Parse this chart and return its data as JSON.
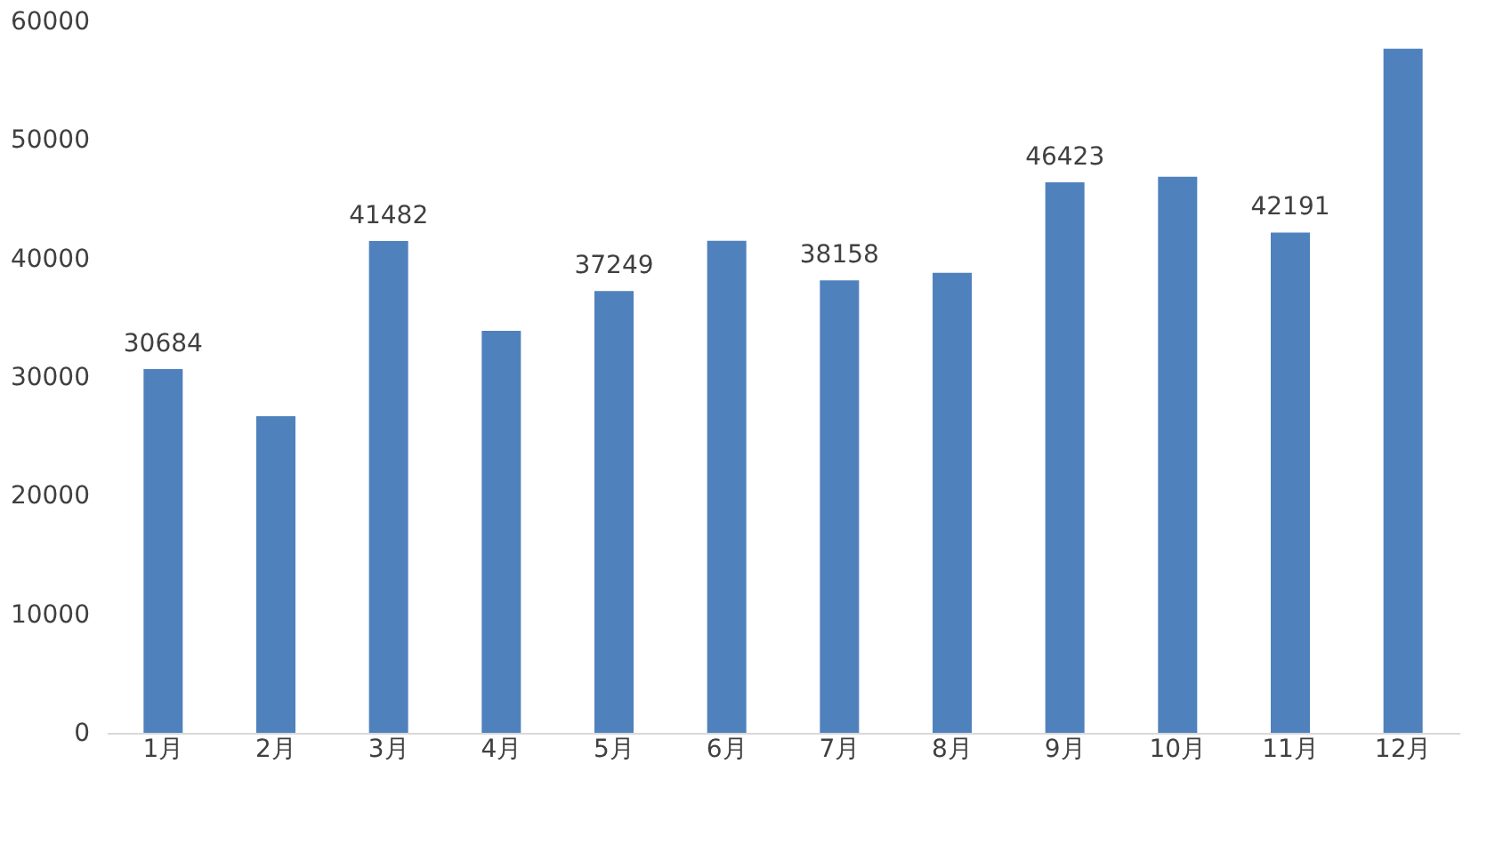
{
  "chart_data": {
    "type": "bar",
    "categories": [
      "1月",
      "2月",
      "3月",
      "4月",
      "5月",
      "6月",
      "7月",
      "8月",
      "9月",
      "10月",
      "11月",
      "12月"
    ],
    "values": [
      30684,
      26700,
      41482,
      33900,
      37249,
      41500,
      38158,
      38800,
      46423,
      46900,
      42191,
      57700
    ],
    "value_labels": [
      "30684",
      null,
      "41482",
      null,
      "37249",
      null,
      "38158",
      null,
      "46423",
      null,
      "42191",
      null
    ],
    "color": "#4f81bd",
    "ylim": [
      0,
      60000
    ],
    "yticks": [
      0,
      10000,
      20000,
      30000,
      40000,
      50000,
      60000
    ],
    "grid": false
  }
}
